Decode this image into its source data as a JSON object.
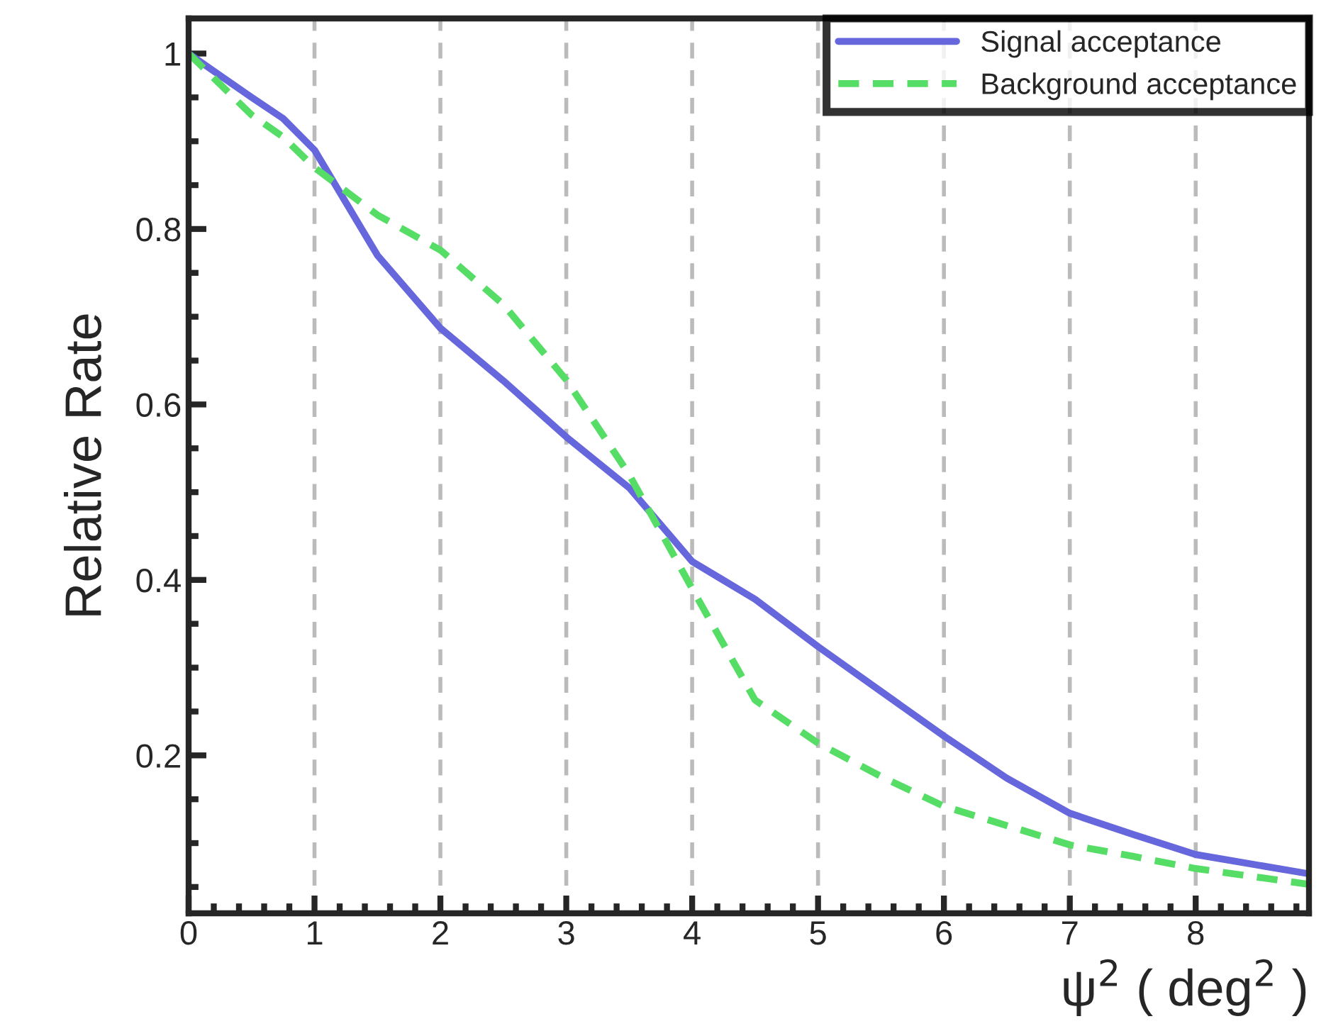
{
  "chart_data": {
    "type": "line",
    "xlabel": "ψ$^{2}$ ( deg$^{2}$ )",
    "ylabel": "Relative Rate",
    "xlim": [
      0,
      8.9
    ],
    "ylim": [
      0.02,
      1.04
    ],
    "xticks": [
      0,
      1,
      2,
      3,
      4,
      5,
      6,
      7,
      8
    ],
    "yticks": [
      0.2,
      0.4,
      0.6,
      0.8,
      1
    ],
    "grid": "x",
    "legend": "top right",
    "series": [
      {
        "name": "Signal acceptance",
        "color": "#6666dd",
        "line_style": "solid",
        "x": [
          0,
          0.25,
          0.5,
          0.75,
          1,
          1.5,
          2,
          2.5,
          3,
          3.5,
          4,
          4.5,
          5,
          5.5,
          6,
          6.5,
          7,
          7.5,
          8,
          8.9
        ],
        "values": [
          1.0,
          0.975,
          0.95,
          0.926,
          0.89,
          0.77,
          0.687,
          0.627,
          0.563,
          0.505,
          0.421,
          0.378,
          0.324,
          0.273,
          0.222,
          0.174,
          0.134,
          0.11,
          0.087,
          0.065
        ]
      },
      {
        "name": "Background acceptance",
        "color": "#55dd66",
        "line_style": "dashed",
        "x": [
          0,
          0.25,
          0.5,
          0.75,
          1,
          1.5,
          2,
          2.5,
          3,
          3.5,
          4,
          4.5,
          5,
          5.5,
          6,
          6.5,
          7,
          7.5,
          8,
          8.9
        ],
        "values": [
          1.0,
          0.965,
          0.93,
          0.905,
          0.87,
          0.816,
          0.776,
          0.714,
          0.628,
          0.52,
          0.39,
          0.263,
          0.214,
          0.176,
          0.142,
          0.12,
          0.098,
          0.085,
          0.071,
          0.053
        ]
      }
    ]
  }
}
